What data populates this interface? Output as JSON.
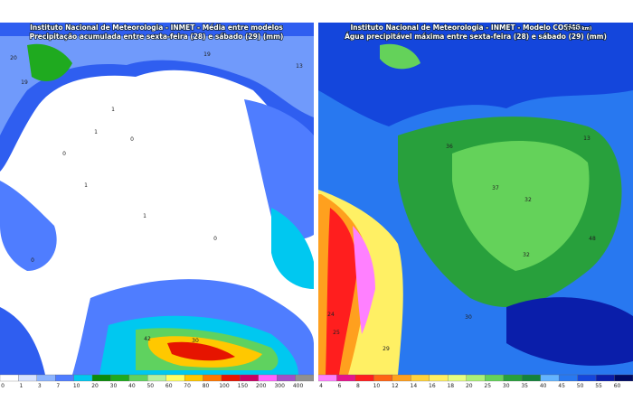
{
  "left_panel": {
    "title": "Instituto Nacional de Meteorologia - INMET - Média entre modelos",
    "subtitle": "Precipitação acumulada entre sexta-feira (28) e sábado (29) (mm)",
    "colorbar": {
      "labels": [
        0,
        1,
        3,
        7,
        10,
        20,
        30,
        40,
        50,
        60,
        70,
        80,
        100,
        150,
        200,
        300,
        400
      ],
      "colors": [
        "#ffffff",
        "#d6e2ff",
        "#8cb4ff",
        "#4f7dff",
        "#00c8f0",
        "#0a8c0a",
        "#1faa1f",
        "#5fd25f",
        "#b4f0a0",
        "#ffff64",
        "#ffc800",
        "#ff7800",
        "#e61400",
        "#c80064",
        "#ff64ff",
        "#a050c8",
        "#909090"
      ]
    },
    "map_labels": [
      "20",
      "19",
      "19",
      "1",
      "1",
      "0",
      "0",
      "1",
      "1",
      "0",
      "0",
      "42",
      "30",
      "13"
    ]
  },
  "right_panel": {
    "title": "Instituto Nacional de Meteorologia - INMET - Modelo COSMO",
    "title_note": "(7 x 7 km)",
    "subtitle": "Água precipitável máxima entre sexta-feira (28) e sábado (29) (mm)",
    "colorbar": {
      "labels": [
        4,
        6,
        8,
        10,
        12,
        14,
        16,
        18,
        20,
        25,
        30,
        35,
        40,
        45,
        50,
        55,
        60
      ],
      "colors": [
        "#ff80ff",
        "#e6148c",
        "#ff1e1e",
        "#ff6414",
        "#ffa01e",
        "#ffd23c",
        "#fff064",
        "#e6ff82",
        "#aaf078",
        "#64d25a",
        "#28a03c",
        "#14823c",
        "#64b4ff",
        "#2878f0",
        "#1446dc",
        "#0a1eaa",
        "#000a64"
      ]
    },
    "map_labels": [
      "36",
      "37",
      "32",
      "32",
      "24",
      "25",
      "29",
      "30",
      "48",
      "13"
    ]
  }
}
